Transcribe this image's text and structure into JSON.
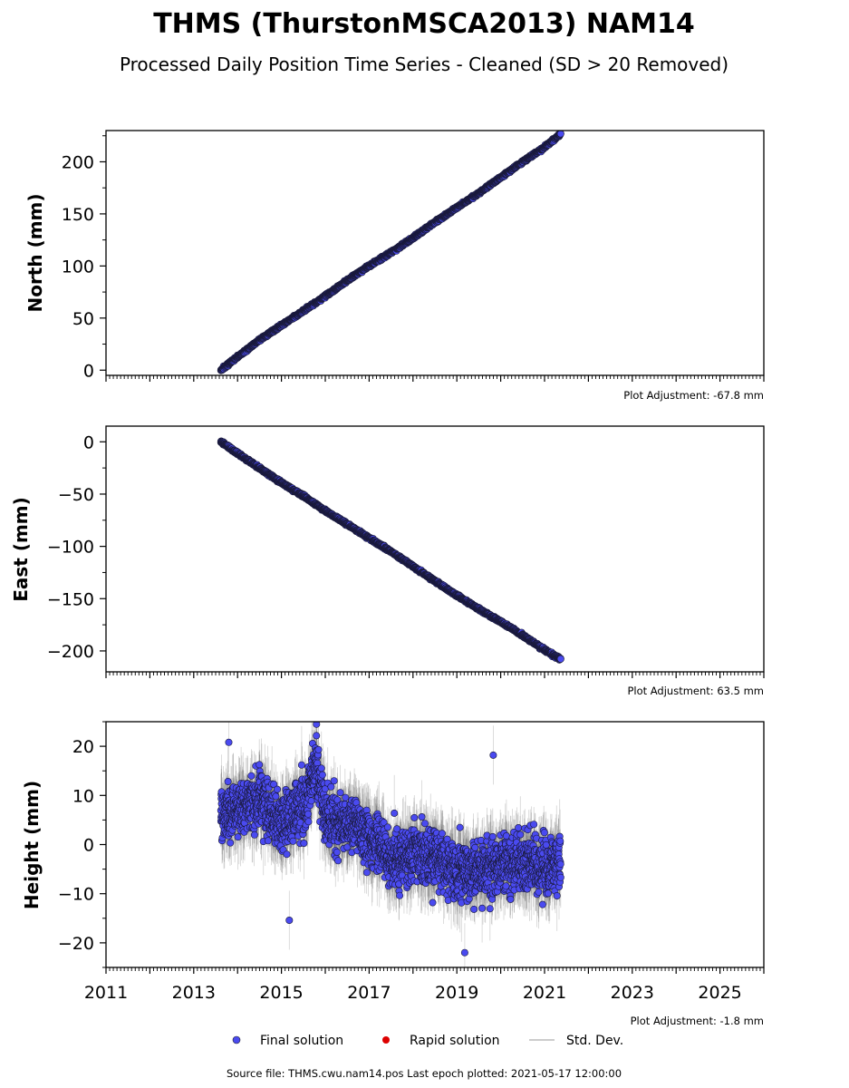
{
  "figure": {
    "title": "THMS (ThurstonMSCA2013) NAM14",
    "subtitle": "Processed Daily Position Time Series - Cleaned (SD > 20 Removed)",
    "source": "Source file: THMS.cwu.nam14.pos  Last epoch plotted: 2021-05-17 12:00:00"
  },
  "legend": {
    "placement": "bottom-center",
    "items": [
      {
        "label": "Final solution",
        "marker": "circle",
        "color": "#4a4af0"
      },
      {
        "label": "Rapid solution",
        "marker": "circle",
        "color": "#dd0000"
      },
      {
        "label": "Std. Dev.",
        "marker": "line",
        "color": "#cccccc"
      }
    ]
  },
  "chart_data": [
    {
      "type": "scatter",
      "panel": "north",
      "ylabel": "North (mm)",
      "adjustment": "Plot Adjustment: -67.8 mm",
      "xlim": [
        2011,
        2026
      ],
      "ylim": [
        -5,
        230
      ],
      "yticks": [
        0,
        50,
        100,
        150,
        200
      ],
      "ytick_labels": [
        "0",
        "50",
        "100",
        "150",
        "200"
      ],
      "x": [
        2013.62,
        2014.0,
        2014.5,
        2015.0,
        2015.5,
        2016.0,
        2016.5,
        2017.0,
        2017.5,
        2018.0,
        2018.5,
        2019.0,
        2019.5,
        2020.0,
        2020.5,
        2021.0,
        2021.37
      ],
      "y": [
        0,
        13,
        29,
        43,
        57,
        71,
        86,
        100,
        113,
        127,
        142,
        156,
        170,
        185,
        200,
        214,
        227
      ],
      "marker_color": "#4a4af0",
      "grid": false
    },
    {
      "type": "scatter",
      "panel": "east",
      "ylabel": "East (mm)",
      "adjustment": "Plot Adjustment: 63.5 mm",
      "xlim": [
        2011,
        2026
      ],
      "ylim": [
        -220,
        15
      ],
      "yticks": [
        0,
        -50,
        -100,
        -150,
        -200
      ],
      "ytick_labels": [
        "0",
        "−50",
        "−100",
        "−150",
        "−200"
      ],
      "x": [
        2013.62,
        2014.0,
        2014.5,
        2015.0,
        2015.5,
        2016.0,
        2016.5,
        2017.0,
        2017.5,
        2018.0,
        2018.5,
        2019.0,
        2019.5,
        2020.0,
        2020.5,
        2021.0,
        2021.37
      ],
      "y": [
        0,
        -11,
        -25,
        -39,
        -52,
        -66,
        -79,
        -92,
        -105,
        -119,
        -133,
        -147,
        -160,
        -172,
        -185,
        -199,
        -208
      ],
      "marker_color": "#4a4af0",
      "grid": false
    },
    {
      "type": "scatter",
      "panel": "height",
      "ylabel": "Height (mm)",
      "adjustment": "Plot Adjustment: -1.8 mm",
      "xlim": [
        2011,
        2026
      ],
      "ylim": [
        -25,
        25
      ],
      "yticks": [
        20,
        10,
        0,
        -10,
        -20
      ],
      "ytick_labels": [
        "20",
        "10",
        "0",
        "−10",
        "−20"
      ],
      "xticks": [
        2011,
        2013,
        2015,
        2017,
        2019,
        2021,
        2023,
        2025
      ],
      "xtick_labels": [
        "2011",
        "2013",
        "2015",
        "2017",
        "2019",
        "2021",
        "2023",
        "2025"
      ],
      "x": [
        2013.62,
        2014.0,
        2014.5,
        2015.0,
        2015.5,
        2015.8,
        2016.0,
        2016.5,
        2017.0,
        2017.5,
        2018.0,
        2018.5,
        2019.0,
        2019.5,
        2020.0,
        2020.5,
        2021.0,
        2021.37
      ],
      "y": [
        6,
        7,
        9,
        4,
        8,
        15,
        5,
        4,
        2,
        -3,
        -2,
        -3,
        -5,
        -5,
        -4,
        -4,
        -5,
        -3
      ],
      "spread": 5.5,
      "outliers": [
        {
          "x": 2015.18,
          "y": -15.4
        },
        {
          "x": 2019.83,
          "y": 18.2
        },
        {
          "x": 2019.18,
          "y": -22
        },
        {
          "x": 2013.8,
          "y": 20.8
        },
        {
          "x": 2015.8,
          "y": 24.5
        }
      ],
      "marker_color": "#4a4af0",
      "grid": false
    }
  ]
}
